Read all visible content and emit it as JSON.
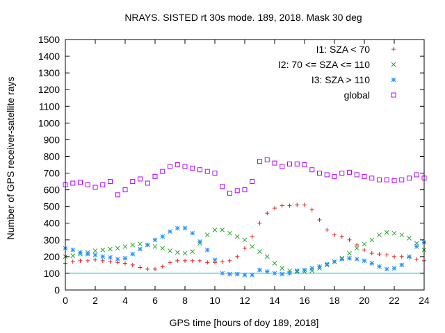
{
  "chart_data": {
    "type": "scatter",
    "title": "NRAYS. SISTED rt 30s mode. 189, 2018. Mask 30 deg",
    "xlabel": "GPS time [hours of doy 189, 2018]",
    "ylabel": "Number of GPS receiver-satellite rays",
    "xlim": [
      0,
      24
    ],
    "ylim": [
      0,
      1500
    ],
    "xticks": [
      0,
      2,
      4,
      6,
      8,
      10,
      12,
      14,
      16,
      18,
      20,
      22,
      24
    ],
    "yticks": [
      0,
      100,
      200,
      300,
      400,
      500,
      600,
      700,
      800,
      900,
      1000,
      1100,
      1200,
      1300,
      1400,
      1500
    ],
    "reference_line": {
      "y": 100,
      "color": "#00c0c0"
    },
    "legend_position": "top-right",
    "series": [
      {
        "name": "I1: SZA < 70",
        "marker": "+",
        "color": "#e41a1c",
        "x": [
          0,
          0.5,
          1,
          1.5,
          2,
          2.5,
          3,
          3.5,
          4,
          4.5,
          5,
          5.5,
          6,
          6.5,
          7,
          7.5,
          8,
          8.5,
          9,
          9.5,
          10,
          10.5,
          11,
          11.5,
          12,
          12.5,
          13,
          13.5,
          14,
          14.5,
          15,
          15.5,
          16,
          16.5,
          17,
          17.5,
          18,
          18.5,
          19,
          19.5,
          20,
          20.5,
          21,
          21.5,
          22,
          22.5,
          23,
          23.5,
          24
        ],
        "y": [
          160,
          170,
          175,
          175,
          180,
          175,
          170,
          165,
          160,
          150,
          135,
          125,
          125,
          140,
          165,
          175,
          175,
          175,
          175,
          165,
          165,
          170,
          175,
          200,
          250,
          320,
          400,
          460,
          490,
          505,
          505,
          510,
          510,
          480,
          420,
          360,
          330,
          320,
          300,
          270,
          240,
          220,
          215,
          210,
          200,
          200,
          195,
          185,
          175
        ]
      },
      {
        "name": "I2: 70 <= SZA <= 110",
        "marker": "x",
        "color": "#1ea81e",
        "x": [
          0,
          0.5,
          1,
          1.5,
          2,
          2.5,
          3,
          3.5,
          4,
          4.5,
          5,
          5.5,
          6,
          6.5,
          7,
          7.5,
          8,
          8.5,
          9,
          9.5,
          10,
          10.5,
          11,
          11.5,
          12,
          12.5,
          13,
          13.5,
          14,
          14.5,
          15,
          15.5,
          16,
          16.5,
          17,
          17.5,
          18,
          18.5,
          19,
          19.5,
          20,
          20.5,
          21,
          21.5,
          22,
          22.5,
          23,
          23.5,
          24
        ],
        "y": [
          200,
          205,
          215,
          225,
          235,
          240,
          245,
          250,
          260,
          270,
          275,
          270,
          260,
          250,
          235,
          225,
          220,
          230,
          280,
          330,
          360,
          360,
          340,
          320,
          300,
          260,
          230,
          200,
          160,
          130,
          115,
          110,
          110,
          115,
          130,
          150,
          170,
          190,
          220,
          250,
          275,
          300,
          330,
          345,
          340,
          330,
          310,
          280,
          240
        ]
      },
      {
        "name": "I3: SZA > 110",
        "marker": "*",
        "color": "#1e90ff",
        "x": [
          0,
          0.5,
          1,
          1.5,
          2,
          2.5,
          3,
          3.5,
          4,
          4.5,
          5,
          5.5,
          6,
          6.5,
          7,
          7.5,
          8,
          8.5,
          9,
          9.5,
          10,
          10.5,
          11,
          11.5,
          12,
          12.5,
          13,
          13.5,
          14,
          14.5,
          15,
          15.5,
          16,
          16.5,
          17,
          17.5,
          18,
          18.5,
          19,
          19.5,
          20,
          20.5,
          21,
          21.5,
          22,
          22.5,
          23,
          23.5,
          24
        ],
        "y": [
          250,
          240,
          225,
          215,
          210,
          200,
          195,
          185,
          190,
          215,
          245,
          270,
          300,
          320,
          350,
          370,
          370,
          340,
          290,
          240,
          180,
          100,
          95,
          95,
          90,
          90,
          120,
          110,
          100,
          95,
          100,
          115,
          120,
          130,
          140,
          155,
          170,
          185,
          190,
          185,
          175,
          160,
          140,
          125,
          130,
          150,
          200,
          260,
          285
        ]
      },
      {
        "name": "global",
        "marker": "square",
        "color": "#b400ff",
        "x": [
          0,
          0.5,
          1,
          1.5,
          2,
          2.5,
          3,
          3.5,
          4,
          4.5,
          5,
          5.5,
          6,
          6.5,
          7,
          7.5,
          8,
          8.5,
          9,
          9.5,
          10,
          10.5,
          11,
          11.5,
          12,
          12.5,
          13,
          13.5,
          14,
          14.5,
          15,
          15.5,
          16,
          16.5,
          17,
          17.5,
          18,
          18.5,
          19,
          19.5,
          20,
          20.5,
          21,
          21.5,
          22,
          22.5,
          23,
          23.5,
          24
        ],
        "y": [
          630,
          640,
          645,
          630,
          615,
          630,
          650,
          570,
          600,
          650,
          665,
          640,
          680,
          710,
          740,
          750,
          740,
          730,
          720,
          710,
          700,
          620,
          580,
          595,
          600,
          650,
          770,
          780,
          760,
          740,
          755,
          755,
          750,
          720,
          700,
          690,
          680,
          700,
          705,
          690,
          680,
          670,
          660,
          660,
          655,
          660,
          670,
          690,
          670
        ]
      }
    ]
  }
}
